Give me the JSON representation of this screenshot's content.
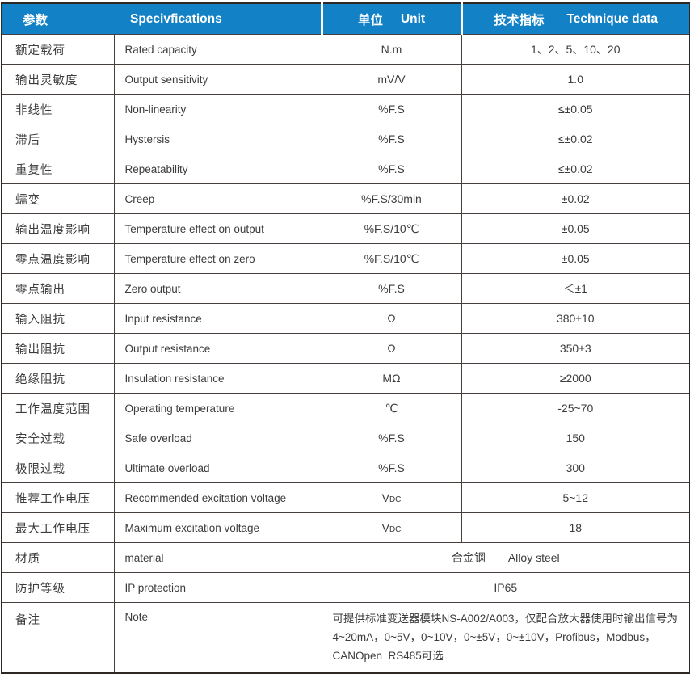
{
  "colors": {
    "header_bg": "#1381C6",
    "header_text": "#FFFFFF",
    "body_text": "#3C3C3C",
    "border": "#463F3C"
  },
  "table": {
    "header": {
      "params_cn": "参数",
      "params_en": "Specivfications",
      "unit_cn": "单位",
      "unit_en": "Unit",
      "data_cn": "技术指标",
      "data_en": "Technique data"
    },
    "rows": [
      {
        "cn": "额定载荷",
        "en": "Rated capacity",
        "unit": "N.m",
        "value": "1、2、5、10、20"
      },
      {
        "cn": "输出灵敏度",
        "en": "Output sensitivity",
        "unit": "mV/V",
        "value": "1.0"
      },
      {
        "cn": "非线性",
        "en": "Non-linearity",
        "unit": "%F.S",
        "value": "≤±0.05"
      },
      {
        "cn": "滞后",
        "en": "Hystersis",
        "unit": "%F.S",
        "value": "≤±0.02"
      },
      {
        "cn": "重复性",
        "en": "Repeatability",
        "unit": "%F.S",
        "value": "≤±0.02"
      },
      {
        "cn": "蠕变",
        "en": "Creep",
        "unit": "%F.S/30min",
        "value": "±0.02"
      },
      {
        "cn": "输出温度影响",
        "en": "Temperature effect on output",
        "unit": "%F.S/10℃",
        "value": "±0.05"
      },
      {
        "cn": "零点温度影响",
        "en": "Temperature effect on zero",
        "unit": "%F.S/10℃",
        "value": "±0.05"
      },
      {
        "cn": "零点输出",
        "en": "Zero output",
        "unit": "%F.S",
        "value": "＜±1"
      },
      {
        "cn": "输入阻抗",
        "en": "Input resistance",
        "unit": "Ω",
        "value": "380±10"
      },
      {
        "cn": "输出阻抗",
        "en": "Output resistance",
        "unit": "Ω",
        "value": "350±3"
      },
      {
        "cn": "绝缘阻抗",
        "en": "Insulation resistance",
        "unit": "MΩ",
        "value": "≥2000"
      },
      {
        "cn": "工作温度范围",
        "en": "Operating temperature",
        "unit": "℃",
        "value": "-25~70"
      },
      {
        "cn": "安全过载",
        "en": "Safe overload",
        "unit": "%F.S",
        "value": "150"
      },
      {
        "cn": "极限过载",
        "en": "Ultimate overload",
        "unit": "%F.S",
        "value": "300"
      },
      {
        "cn": "推荐工作电压",
        "en": "Recommended excitation voltage",
        "unit": {
          "text": "V",
          "sub": "DC"
        },
        "value": "5~12"
      },
      {
        "cn": "最大工作电压",
        "en": "Maximum excitation voltage",
        "unit": {
          "text": "V",
          "sub": "DC"
        },
        "value": "18"
      },
      {
        "cn": "材质",
        "en": "material",
        "merged": true,
        "value": "合金钢　　Alloy steel"
      },
      {
        "cn": "防护等级",
        "en": "IP protection",
        "merged": true,
        "value": "IP65"
      },
      {
        "cn": "备注",
        "en": "Note",
        "merged": true,
        "note": true,
        "lines": [
          "可提供标准变送器模块NS-A002/A003，仅配合放大器使用时输出信号为",
          "4~20mA，0~5V，0~10V，0~±5V，0~±10V，Profibus，Modbus，",
          "CANOpen  RS485可选"
        ]
      }
    ]
  }
}
